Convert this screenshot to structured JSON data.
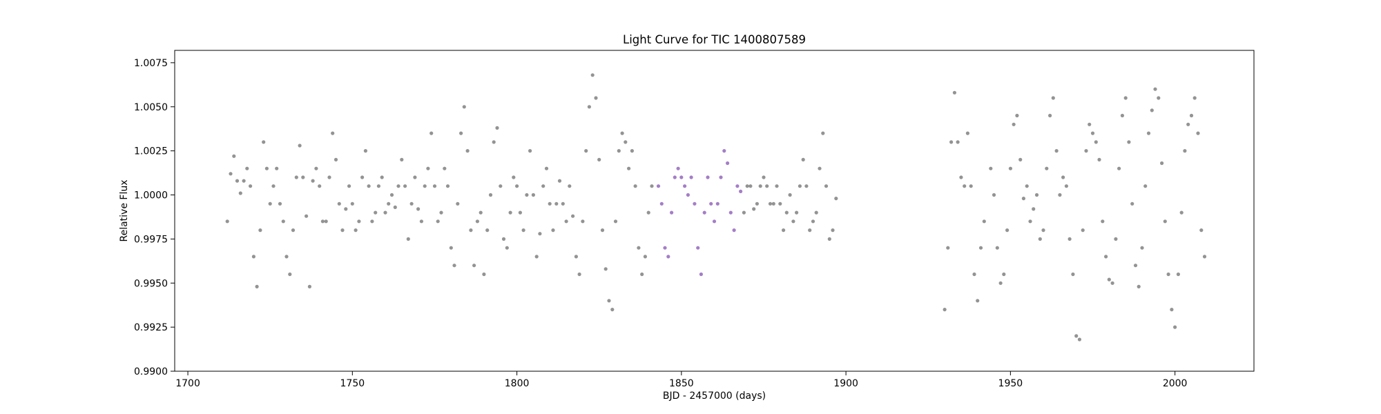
{
  "chart_data": {
    "type": "scatter",
    "title": "Light Curve for TIC 1400807589",
    "xlabel": "BJD - 2457000 (days)",
    "ylabel": "Relative Flux",
    "xlim": [
      1696,
      2024
    ],
    "ylim": [
      0.99,
      1.0082
    ],
    "x_ticks": [
      1700,
      1750,
      1800,
      1850,
      1900,
      1950,
      2000
    ],
    "y_ticks": [
      0.99,
      0.9925,
      0.995,
      0.9975,
      1.0,
      1.0025,
      1.005,
      1.0075
    ],
    "x_tick_labels": [
      "1700",
      "1750",
      "1800",
      "1850",
      "1900",
      "1950",
      "2000"
    ],
    "y_tick_labels": [
      "0.9900",
      "0.9925",
      "0.9950",
      "0.9975",
      "1.0000",
      "1.0025",
      "1.0050",
      "1.0075"
    ],
    "grid": false,
    "legend": "none",
    "series": [
      {
        "color": "#808080",
        "points": [
          [
            1712,
            0.9985
          ],
          [
            1713,
            1.0012
          ],
          [
            1714,
            1.0022
          ],
          [
            1715,
            1.0008
          ],
          [
            1716,
            1.0001
          ],
          [
            1717,
            1.0008
          ],
          [
            1718,
            1.0015
          ],
          [
            1719,
            1.0005
          ],
          [
            1720,
            0.9965
          ],
          [
            1721,
            0.9948
          ],
          [
            1722,
            0.998
          ],
          [
            1723,
            1.003
          ],
          [
            1724,
            1.0015
          ],
          [
            1725,
            0.9995
          ],
          [
            1726,
            1.0005
          ],
          [
            1727,
            1.0015
          ],
          [
            1728,
            0.9995
          ],
          [
            1729,
            0.9985
          ],
          [
            1730,
            0.9965
          ],
          [
            1731,
            0.9955
          ],
          [
            1732,
            0.998
          ],
          [
            1733,
            1.001
          ],
          [
            1734,
            1.0028
          ],
          [
            1735,
            1.001
          ],
          [
            1736,
            0.9988
          ],
          [
            1737,
            0.9948
          ],
          [
            1738,
            1.0008
          ],
          [
            1739,
            1.0015
          ],
          [
            1740,
            1.0005
          ],
          [
            1741,
            0.9985
          ],
          [
            1742,
            0.9985
          ],
          [
            1743,
            1.001
          ],
          [
            1744,
            1.0035
          ],
          [
            1745,
            1.002
          ],
          [
            1746,
            0.9995
          ],
          [
            1747,
            0.998
          ],
          [
            1748,
            0.9992
          ],
          [
            1749,
            1.0005
          ],
          [
            1750,
            0.9995
          ],
          [
            1751,
            0.998
          ],
          [
            1752,
            0.9985
          ],
          [
            1753,
            1.001
          ],
          [
            1754,
            1.0025
          ],
          [
            1755,
            1.0005
          ],
          [
            1756,
            0.9985
          ],
          [
            1757,
            0.999
          ],
          [
            1758,
            1.0005
          ],
          [
            1759,
            1.001
          ],
          [
            1760,
            0.999
          ],
          [
            1761,
            0.9995
          ],
          [
            1762,
            1.0
          ],
          [
            1763,
            0.9993
          ],
          [
            1764,
            1.0005
          ],
          [
            1765,
            1.002
          ],
          [
            1766,
            1.0005
          ],
          [
            1767,
            0.9975
          ],
          [
            1768,
            0.9995
          ],
          [
            1769,
            1.001
          ],
          [
            1770,
            0.9992
          ],
          [
            1771,
            0.9985
          ],
          [
            1772,
            1.0005
          ],
          [
            1773,
            1.0015
          ],
          [
            1774,
            1.0035
          ],
          [
            1775,
            1.0005
          ],
          [
            1776,
            0.9985
          ],
          [
            1777,
            0.999
          ],
          [
            1778,
            1.0015
          ],
          [
            1779,
            1.0005
          ],
          [
            1780,
            0.997
          ],
          [
            1781,
            0.996
          ],
          [
            1782,
            0.9995
          ],
          [
            1783,
            1.0035
          ],
          [
            1784,
            1.005
          ],
          [
            1785,
            1.0025
          ],
          [
            1786,
            0.998
          ],
          [
            1787,
            0.996
          ],
          [
            1788,
            0.9985
          ],
          [
            1789,
            0.999
          ],
          [
            1790,
            0.9955
          ],
          [
            1791,
            0.998
          ],
          [
            1792,
            1.0
          ],
          [
            1793,
            1.003
          ],
          [
            1794,
            1.0038
          ],
          [
            1795,
            1.0005
          ],
          [
            1796,
            0.9975
          ],
          [
            1797,
            0.997
          ],
          [
            1798,
            0.999
          ],
          [
            1799,
            1.001
          ],
          [
            1800,
            1.0005
          ],
          [
            1801,
            0.999
          ],
          [
            1802,
            0.998
          ],
          [
            1803,
            1.0
          ],
          [
            1804,
            1.0025
          ],
          [
            1805,
            1.0
          ],
          [
            1806,
            0.9965
          ],
          [
            1807,
            0.9978
          ],
          [
            1808,
            1.0005
          ],
          [
            1809,
            1.0015
          ],
          [
            1810,
            0.9995
          ],
          [
            1811,
            0.998
          ],
          [
            1812,
            0.9995
          ],
          [
            1813,
            1.0008
          ],
          [
            1814,
            0.9995
          ],
          [
            1815,
            0.9985
          ],
          [
            1816,
            1.0005
          ],
          [
            1817,
            0.9988
          ],
          [
            1818,
            0.9965
          ],
          [
            1819,
            0.9955
          ],
          [
            1820,
            0.9985
          ],
          [
            1821,
            1.0025
          ],
          [
            1822,
            1.005
          ],
          [
            1823,
            1.0068
          ],
          [
            1824,
            1.0055
          ],
          [
            1825,
            1.002
          ],
          [
            1826,
            0.998
          ],
          [
            1827,
            0.9958
          ],
          [
            1828,
            0.994
          ],
          [
            1829,
            0.9935
          ],
          [
            1830,
            0.9985
          ],
          [
            1831,
            1.0025
          ],
          [
            1832,
            1.0035
          ],
          [
            1833,
            1.003
          ],
          [
            1834,
            1.0015
          ],
          [
            1835,
            1.0025
          ],
          [
            1836,
            1.0005
          ],
          [
            1837,
            0.997
          ],
          [
            1838,
            0.9955
          ],
          [
            1839,
            0.9965
          ],
          [
            1840,
            0.999
          ],
          [
            1841,
            1.0005
          ],
          [
            1897,
            0.9998
          ],
          [
            1896,
            0.998
          ],
          [
            1895,
            0.9975
          ],
          [
            1894,
            1.0005
          ],
          [
            1893,
            1.0035
          ],
          [
            1892,
            1.0015
          ],
          [
            1891,
            0.999
          ],
          [
            1890,
            0.9985
          ],
          [
            1889,
            0.998
          ],
          [
            1888,
            1.0005
          ],
          [
            1887,
            1.002
          ],
          [
            1886,
            1.0005
          ],
          [
            1885,
            0.999
          ],
          [
            1884,
            0.9985
          ],
          [
            1883,
            1.0
          ],
          [
            1882,
            0.999
          ],
          [
            1881,
            0.998
          ],
          [
            1880,
            0.9995
          ],
          [
            1879,
            1.0005
          ],
          [
            1878,
            0.9995
          ],
          [
            1877,
            0.9995
          ],
          [
            1876,
            1.0005
          ],
          [
            1875,
            1.001
          ],
          [
            1874,
            1.0005
          ],
          [
            1873,
            0.9995
          ],
          [
            1872,
            0.9992
          ],
          [
            1871,
            1.0005
          ],
          [
            1870,
            1.0005
          ],
          [
            1869,
            0.999
          ],
          [
            1930,
            0.9935
          ],
          [
            1931,
            0.997
          ],
          [
            1932,
            1.003
          ],
          [
            1933,
            1.0058
          ],
          [
            1934,
            1.003
          ],
          [
            1935,
            1.001
          ],
          [
            1936,
            1.0005
          ],
          [
            1937,
            1.0035
          ],
          [
            1938,
            1.0005
          ],
          [
            1939,
            0.9955
          ],
          [
            1940,
            0.994
          ],
          [
            1941,
            0.997
          ],
          [
            1942,
            0.9985
          ],
          [
            1944,
            1.0015
          ],
          [
            1945,
            1.0
          ],
          [
            1946,
            0.997
          ],
          [
            1947,
            0.995
          ],
          [
            1948,
            0.9955
          ],
          [
            1949,
            0.998
          ],
          [
            1950,
            1.0015
          ],
          [
            1951,
            1.004
          ],
          [
            1952,
            1.0045
          ],
          [
            1953,
            1.002
          ],
          [
            1954,
            0.9998
          ],
          [
            1955,
            1.0005
          ],
          [
            1956,
            0.9985
          ],
          [
            1957,
            0.9992
          ],
          [
            1958,
            1.0
          ],
          [
            1959,
            0.9975
          ],
          [
            1960,
            0.998
          ],
          [
            1961,
            1.0015
          ],
          [
            1962,
            1.0045
          ],
          [
            1963,
            1.0055
          ],
          [
            1964,
            1.0025
          ],
          [
            1965,
            1.0
          ],
          [
            1966,
            1.001
          ],
          [
            1967,
            1.0005
          ],
          [
            1968,
            0.9975
          ],
          [
            1969,
            0.9955
          ],
          [
            1970,
            0.992
          ],
          [
            1971,
            0.9918
          ],
          [
            1972,
            0.998
          ],
          [
            1973,
            1.0025
          ],
          [
            1974,
            1.004
          ],
          [
            1975,
            1.0035
          ],
          [
            1976,
            1.003
          ],
          [
            1977,
            1.002
          ],
          [
            1978,
            0.9985
          ],
          [
            1979,
            0.9965
          ],
          [
            1980,
            0.9952
          ],
          [
            1981,
            0.995
          ],
          [
            1982,
            0.9975
          ],
          [
            1983,
            1.0015
          ],
          [
            1984,
            1.0045
          ],
          [
            1985,
            1.0055
          ],
          [
            1986,
            1.003
          ],
          [
            1987,
            0.9995
          ],
          [
            1988,
            0.996
          ],
          [
            1989,
            0.9948
          ],
          [
            1990,
            0.997
          ],
          [
            1991,
            1.0005
          ],
          [
            1992,
            1.0035
          ],
          [
            1993,
            1.0048
          ],
          [
            1994,
            1.006
          ],
          [
            1995,
            1.0055
          ],
          [
            1996,
            1.0018
          ],
          [
            1997,
            0.9985
          ],
          [
            1998,
            0.9955
          ],
          [
            1999,
            0.9935
          ],
          [
            2000,
            0.9925
          ],
          [
            2001,
            0.9955
          ],
          [
            2002,
            0.999
          ],
          [
            2003,
            1.0025
          ],
          [
            2004,
            1.004
          ],
          [
            2005,
            1.0045
          ],
          [
            2006,
            1.0055
          ],
          [
            2007,
            1.0035
          ],
          [
            2008,
            0.998
          ],
          [
            2009,
            0.9965
          ]
        ]
      },
      {
        "color": "#9467bd",
        "points": [
          [
            1843,
            1.0005
          ],
          [
            1844,
            0.9995
          ],
          [
            1845,
            0.997
          ],
          [
            1846,
            0.9965
          ],
          [
            1847,
            0.999
          ],
          [
            1848,
            1.001
          ],
          [
            1849,
            1.0015
          ],
          [
            1850,
            1.001
          ],
          [
            1851,
            1.0005
          ],
          [
            1852,
            1.0
          ],
          [
            1853,
            1.001
          ],
          [
            1854,
            0.9995
          ],
          [
            1855,
            0.997
          ],
          [
            1856,
            0.9955
          ],
          [
            1857,
            0.999
          ],
          [
            1858,
            1.001
          ],
          [
            1859,
            0.9995
          ],
          [
            1860,
            0.9985
          ],
          [
            1861,
            0.9995
          ],
          [
            1862,
            1.001
          ],
          [
            1863,
            1.0025
          ],
          [
            1864,
            1.0018
          ],
          [
            1865,
            0.999
          ],
          [
            1866,
            0.998
          ],
          [
            1867,
            1.0005
          ],
          [
            1868,
            1.0002
          ]
        ]
      }
    ]
  }
}
